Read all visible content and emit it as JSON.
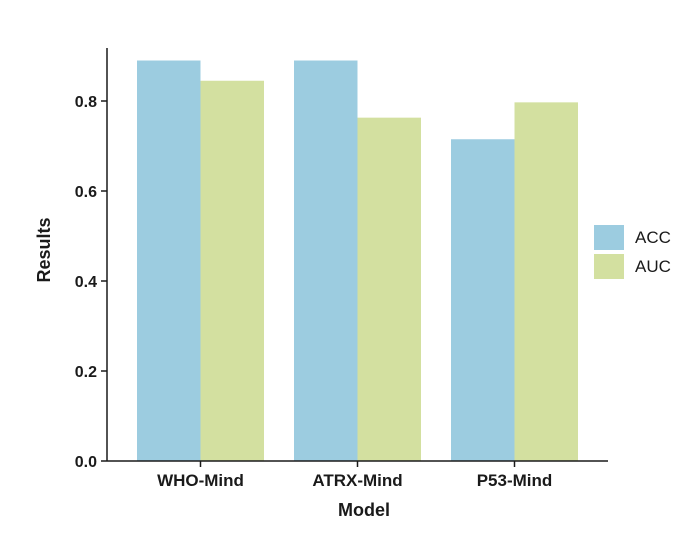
{
  "chart_data": {
    "type": "bar",
    "title": "",
    "xlabel": "Model",
    "ylabel": "Results",
    "categories": [
      "WHO-Mind",
      "ATRX-Mind",
      "P53-Mind"
    ],
    "series": [
      {
        "name": "ACC",
        "values": [
          0.89,
          0.89,
          0.715
        ],
        "color": "#9ccce0"
      },
      {
        "name": "AUC",
        "values": [
          0.845,
          0.763,
          0.797
        ],
        "color": "#d3e0a0"
      }
    ],
    "yticks": [
      "0.0",
      "0.2",
      "0.4",
      "0.6",
      "0.8"
    ],
    "ylim": [
      0,
      0.92
    ],
    "grid": false,
    "legend_position": "right"
  }
}
